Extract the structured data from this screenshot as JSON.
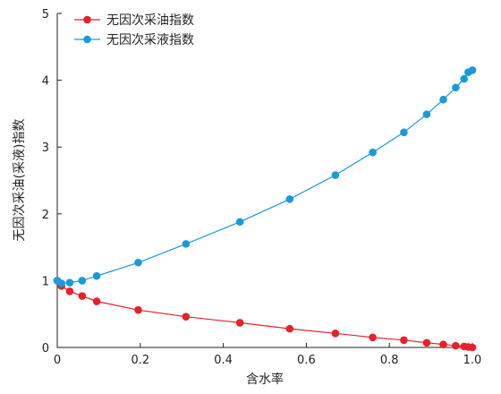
{
  "chart_data": {
    "type": "line",
    "title": "",
    "xlabel": "含水率",
    "ylabel": "无因次采油(采液)指数",
    "xlim": [
      0,
      1.0
    ],
    "ylim": [
      0,
      5
    ],
    "xticks": [
      "0",
      "0.2",
      "0.4",
      "0.6",
      "0.8",
      "1.0"
    ],
    "yticks": [
      "0",
      "1",
      "2",
      "3",
      "4",
      "5"
    ],
    "grid": false,
    "legend_position": "top-left",
    "series": [
      {
        "name": "无因次采油指数",
        "color": "#e8202a",
        "marker": "circle",
        "x": [
          0,
          0.01,
          0.03,
          0.06,
          0.095,
          0.195,
          0.31,
          0.44,
          0.56,
          0.67,
          0.76,
          0.835,
          0.89,
          0.93,
          0.96,
          0.98,
          0.99,
          1.0
        ],
        "y": [
          1.0,
          0.92,
          0.84,
          0.77,
          0.69,
          0.56,
          0.46,
          0.37,
          0.28,
          0.21,
          0.15,
          0.11,
          0.07,
          0.045,
          0.025,
          0.015,
          0.008,
          0.0
        ]
      },
      {
        "name": "无因次采液指数",
        "color": "#1a9ad8",
        "marker": "circle",
        "x": [
          0,
          0.01,
          0.03,
          0.06,
          0.095,
          0.195,
          0.31,
          0.44,
          0.56,
          0.67,
          0.76,
          0.835,
          0.89,
          0.93,
          0.96,
          0.98,
          0.99,
          1.0
        ],
        "y": [
          1.0,
          0.96,
          0.97,
          1.0,
          1.07,
          1.27,
          1.55,
          1.88,
          2.22,
          2.58,
          2.92,
          3.22,
          3.49,
          3.71,
          3.89,
          4.02,
          4.12,
          4.15
        ]
      }
    ]
  }
}
